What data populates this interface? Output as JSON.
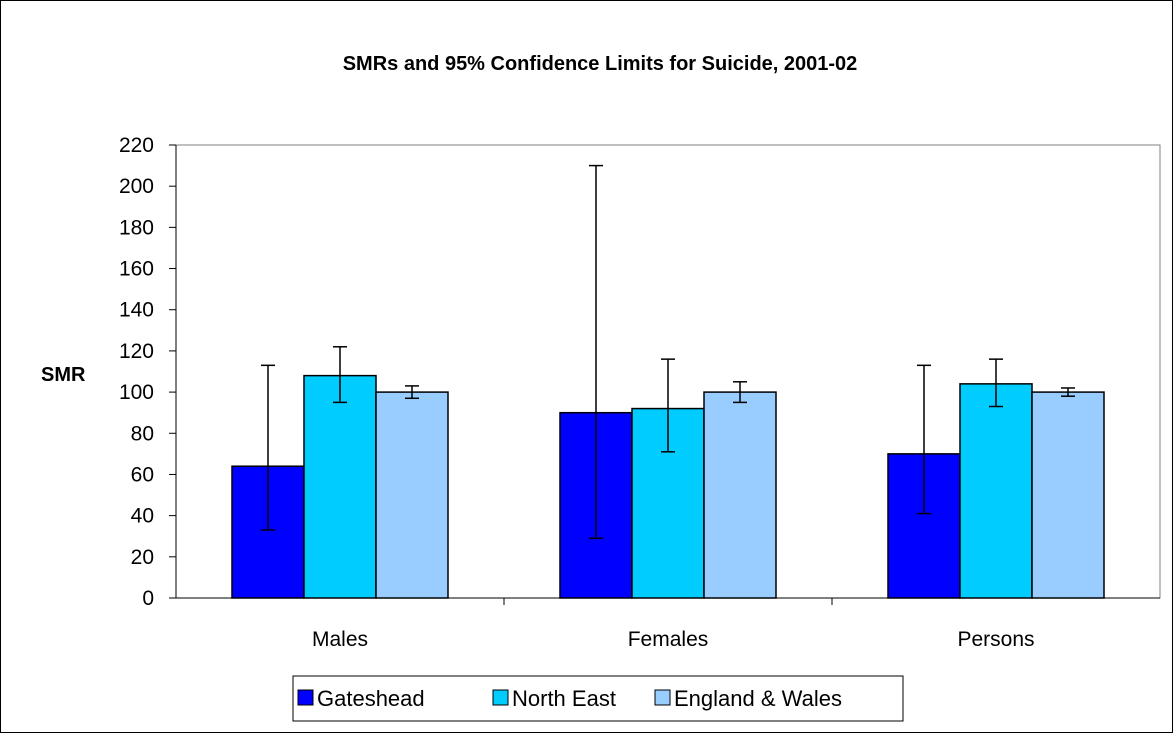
{
  "chart_data": {
    "type": "bar",
    "title": "SMRs and 95% Confidence Limits for Suicide, 2001-02",
    "xlabel": "",
    "ylabel": "SMR",
    "ylim": [
      0,
      220
    ],
    "yticks": [
      0,
      20,
      40,
      60,
      80,
      100,
      120,
      140,
      160,
      180,
      200,
      220
    ],
    "grid": false,
    "legend_position": "bottom",
    "categories": [
      "Males",
      "Females",
      "Persons"
    ],
    "series": [
      {
        "name": "Gateshead",
        "color": "#0000FF",
        "values": [
          64,
          90,
          70
        ],
        "lower": [
          33,
          29,
          41
        ],
        "upper": [
          113,
          210,
          113
        ]
      },
      {
        "name": "North East",
        "color": "#00CCFF",
        "values": [
          108,
          92,
          104
        ],
        "lower": [
          95,
          71,
          93
        ],
        "upper": [
          122,
          116,
          116
        ]
      },
      {
        "name": "England & Wales",
        "color": "#99CCFF",
        "values": [
          100,
          100,
          100
        ],
        "lower": [
          97,
          95,
          98
        ],
        "upper": [
          103,
          105,
          102
        ]
      }
    ]
  }
}
